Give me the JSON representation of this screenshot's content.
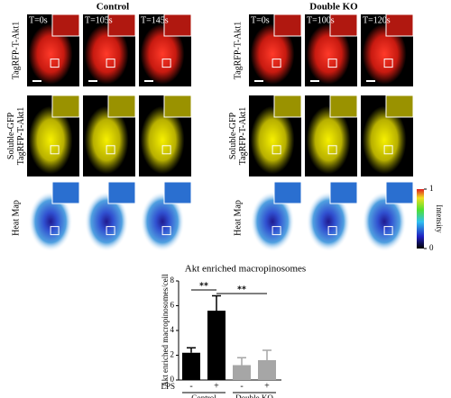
{
  "panels": {
    "groups": [
      {
        "title": "Control",
        "times": [
          "T=0s",
          "T=105s",
          "T=145s"
        ]
      },
      {
        "title": "Double KO",
        "times": [
          "T=0s",
          "T=100s",
          "T=120s"
        ]
      }
    ],
    "row_labels": [
      [
        "TagRFP-T-Akt1"
      ],
      [
        "Soluble-GFP",
        "TagRFP-T-Akt1"
      ],
      [
        "Heat Map"
      ]
    ],
    "colorbar": {
      "label": "Intensity",
      "ticks": [
        1,
        0
      ]
    }
  },
  "chart_data": {
    "type": "bar",
    "title": "Akt enriched macropinosomes",
    "y_label": "Akt enriched macropinosomes/cell",
    "x_label": "LPS",
    "categories": [
      "-",
      "+",
      "-",
      "+"
    ],
    "groups": [
      "Control",
      "Double KO"
    ],
    "values": [
      2.2,
      5.6,
      1.2,
      1.6
    ],
    "errors": [
      0.4,
      1.2,
      0.6,
      0.8
    ],
    "colors": [
      "#000000",
      "#000000",
      "#a6a6a6",
      "#a6a6a6"
    ],
    "ylim": [
      0,
      8
    ],
    "yticks": [
      0,
      2,
      4,
      6,
      8
    ],
    "significance": [
      "**",
      "**"
    ]
  }
}
